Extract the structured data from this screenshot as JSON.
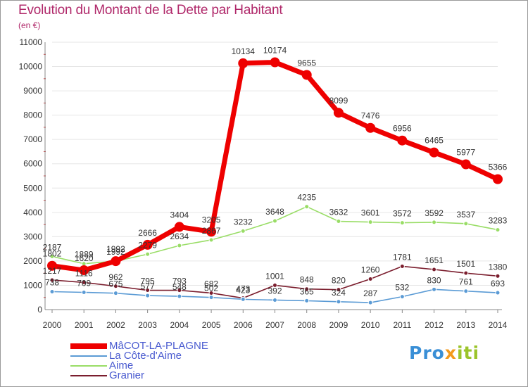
{
  "title": "Evolution du Montant de la Dette par Habitant",
  "subtitle": "(en €)",
  "logo": {
    "text": "Proxiti",
    "colors": [
      "#3a8fd6",
      "#f39a1d",
      "#9bc42a"
    ]
  },
  "chart_data": {
    "type": "line",
    "x": [
      "2000",
      "2001",
      "2002",
      "2003",
      "2004",
      "2005",
      "2006",
      "2007",
      "2008",
      "2009",
      "2010",
      "2011",
      "2012",
      "2013",
      "2014"
    ],
    "ylim": [
      0,
      11000
    ],
    "yticks": [
      0,
      1000,
      2000,
      3000,
      4000,
      5000,
      6000,
      7000,
      8000,
      9000,
      10000,
      11000
    ],
    "grid": true,
    "legend_position": "bottom-left",
    "series": [
      {
        "name": "MâCOT-LA-PLAGNE",
        "color": "#ee0000",
        "values": [
          1802,
          1620,
          1992,
          2666,
          3404,
          3205,
          10134,
          10174,
          9655,
          8099,
          7476,
          6956,
          6465,
          5977,
          5366
        ]
      },
      {
        "name": "La Côte-d'Aime",
        "color": "#5b9bd5",
        "values": [
          738,
          709,
          675,
          577,
          548,
          502,
          423,
          392,
          365,
          324,
          287,
          532,
          830,
          761,
          693
        ]
      },
      {
        "name": "Aime",
        "color": "#99dd66",
        "values": [
          2187,
          1889,
          1992,
          2279,
          2634,
          2867,
          3232,
          3648,
          4235,
          3632,
          3601,
          3572,
          3592,
          3537,
          3283
        ]
      },
      {
        "name": "Granier",
        "color": "#7b1e2e",
        "values": [
          1217,
          1116,
          962,
          795,
          793,
          682,
          473,
          1001,
          848,
          820,
          1260,
          1781,
          1651,
          1501,
          1380
        ]
      }
    ]
  }
}
